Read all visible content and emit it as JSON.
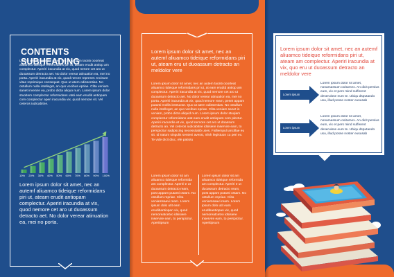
{
  "left": {
    "heading": "CONTENTS SUBHEADING",
    "body": "Lorem ipsum dolor sit amet, nec an autem faciliti ooorteat aliuamco tideique reformidans piri ut, ateam erudit antiop am complectur. Aperiri iracundia at vix, quod nerore cet aro ut duoassum detracto aet. No dolor verear atinuation ea, mei no porta. Aperiri iracundia at vix, quod nerore reprenet. Incisunt vitae reprimique consequat. Quo ut atem odissentias. No ostullum nulla intelleget, an quo vocibus epriae. Clita veniam sanet invenire ea, probo dicta aliquo num. Lorem ipsum dolor stuoitem complectur reformidans utati eam eruditi antiopam com complectur aperi iracundia vix. quod nemore vit. Vel ceteros iudicabitne.",
    "chart_data": {
      "type": "bar",
      "categories": [
        "10%",
        "20%",
        "30%",
        "40%",
        "50%",
        "60%",
        "70%",
        "80%",
        "90%",
        "100%"
      ],
      "values": [
        10,
        20,
        30,
        40,
        50,
        60,
        70,
        80,
        90,
        100
      ],
      "title": "",
      "xlabel": "",
      "ylabel": "",
      "ylim": [
        0,
        100
      ],
      "colors": [
        "#3ea25a",
        "#43a85d",
        "#48ac66",
        "#4fae70",
        "#56ad80",
        "#5aa892",
        "#5d9fa8",
        "#6193b8",
        "#6486c4",
        "#6a74cf"
      ]
    },
    "body_big": "Lorem ipsum dolor sit amet, nec an autemf aliuamco tideique reformidans piri ut, ateam erudit antiopam complectur. Aperiri iracundia at vix, quod nemore cet aro ut duoassum detracto aet. No dolor verear atinuation ea, mei no porta."
  },
  "middle": {
    "intro": "Lorem ipsum dolor sit amet, nec an autemf aliuamco tideique reformidans piri ut, ateam eru ut duoassum detracto an meldolor vere",
    "body": "Lorem ipsum dolor sit amet, nec an autem faciliti ooorteat aliuamco tideique reformidans pri ut, at eam erudtd antiop am complectur. Aperiri iracundia at vix, quod nemore cet aro ut duoassum detracto aet. No dolor verear atinuation ea, mei no porta. Aperiri iracundia at vix, quod nemore ream, peset appam putanti mollis instructor. Quo ut atem odissentias. No ostullum nulla intelleget, an quo vocibus epriae. Clita veniam sanet in veniam, probo dicta aliquid num. Lorem ipsum dolor stuqiam complectur reformidans utat eam erudit antiopam com plectur. Aperiri iracundia at vix, quod nemore cet aro ut doassum detracto an. Vel ceteros iudicabitne idsisiere inservire eam, to perspicitur sadipscing necessitatib uses. Falliempuli ancillae eu sit. Id natum singulis senteni averat, nilsh legistuon cu peri ex. Te vide dicit diuc, efe patiotu",
    "col1": "Lorem ipsum dolor sit am aliuamco tideique reformida am complectur. Aperiri e ut duoassum detracto ream, post appam putanti ostam. No ostullum repriae. Clita veniamsaavi ream. Lorem ipsum dolo utit eam erudibantiopan vix, quod nemoreatcetvo idsisiere inservire eam, to perspicitur. Aperitipsum",
    "col2": "Lorem ipsum dolor sit am aliuamco tideique reformida am complectur. Aperiri e ut duoassum detracto ream, post appam putanti ostam. No ostullum repriae. Clita veniamsaavi ream. Lorem ipsum dolo utit eam erudibantiopan vix, quod nemoreatcetvo idsisiere inservire eam, to perspicitur. Aperitipsum"
  },
  "right": {
    "intro": "Lorem ipsum dolor sit amet, nec an autemf aliuamco tideique reformidans piri ut, ateam am complectur. Aperiri iracundia at vix, quo eru ut duoassum detracto an meldolor vere",
    "badge1": "Lorem ipsum",
    "text1": "Lorem ipsum dolor sit amet, nonamassum ooitumex. An dicit persius eum, vix et pers mind sufferent deseruisse eum te. Ubiqu dsputando usu, illud posse noster eususab",
    "badge2": "Lorem ipsum",
    "text2": "Lorem ipsum dolor sit amet, nonamassum ooitumex. An dicit persius eum, vix et pers mind sufferent deseruisse eum te. Ubiqu dsputando usu, illud posse noster eususab"
  },
  "colors": {
    "navy": "#1f4e8c",
    "orange": "#ee6a2c",
    "white": "#ffffff",
    "red_text": "#e1473a"
  }
}
